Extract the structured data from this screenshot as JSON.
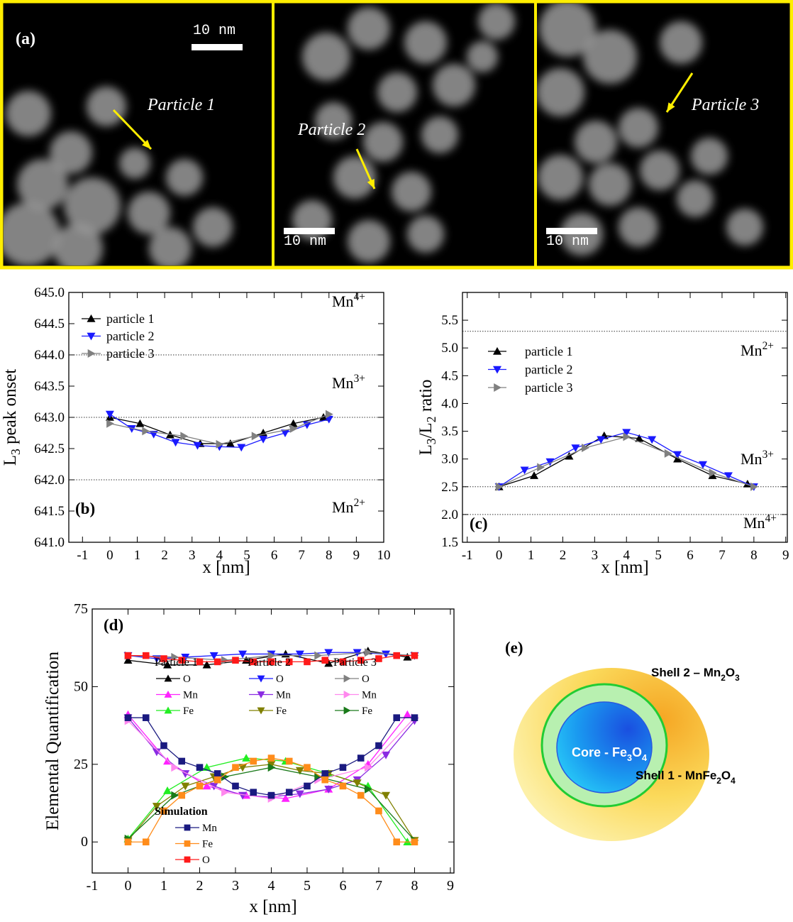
{
  "panel_a": {
    "label": "(a)",
    "scale_bars": [
      "10 nm",
      "10 nm",
      "10 nm"
    ],
    "particles": [
      "Particle 1",
      "Particle 2",
      "Particle 3"
    ]
  },
  "chart_data": [
    {
      "type": "line",
      "panel_label": "(b)",
      "xlabel": "x [nm]",
      "ylabel": [
        "L",
        "3",
        " peak onset"
      ],
      "xlim": [
        -1.5,
        10
      ],
      "ylim": [
        641,
        645
      ],
      "xticks": [
        -1,
        0,
        1,
        2,
        3,
        4,
        5,
        6,
        7,
        8,
        9,
        10
      ],
      "yticks": [
        {
          "value": 641,
          "label": "641.0"
        },
        641.5,
        {
          "value": 642,
          "label": "642.0"
        },
        642.5,
        {
          "value": 643,
          "label": "643.0"
        },
        643.5,
        {
          "value": 644,
          "label": "644.0"
        },
        644.5,
        {
          "value": 645,
          "label": "645.0"
        }
      ],
      "reference_lines": [
        642,
        643,
        644
      ],
      "annotations": [
        [
          "Mn",
          "4+"
        ],
        [
          "Mn",
          "3+"
        ],
        [
          "Mn",
          "2+"
        ]
      ],
      "series": [
        {
          "name": "particle 1",
          "color": "#000000",
          "marker": "triangle-up",
          "x": [
            0,
            1.1,
            2.2,
            3.3,
            4.4,
            5.6,
            6.7,
            7.8
          ],
          "values": [
            643.0,
            642.9,
            642.72,
            642.58,
            642.58,
            642.75,
            642.9,
            643.0
          ]
        },
        {
          "name": "particle 2",
          "color": "#1a1aff",
          "marker": "triangle-down",
          "x": [
            0,
            0.8,
            1.6,
            2.4,
            3.2,
            4,
            4.8,
            5.6,
            6.4,
            7.2,
            8
          ],
          "values": [
            643.05,
            642.82,
            642.73,
            642.6,
            642.55,
            642.53,
            642.52,
            642.65,
            642.75,
            642.88,
            642.97
          ]
        },
        {
          "name": "particle 3",
          "color": "#808080",
          "marker": "triangle-right",
          "x": [
            0,
            1.3,
            2.7,
            4,
            5.3,
            6.7,
            8
          ],
          "values": [
            642.9,
            642.78,
            642.7,
            642.57,
            642.7,
            642.82,
            643.05
          ]
        }
      ]
    },
    {
      "type": "line",
      "panel_label": "(c)",
      "xlabel": "x [nm]",
      "ylabel": [
        "L",
        "3",
        "/L",
        "2",
        " ratio"
      ],
      "xlim": [
        -1.15,
        9.05
      ],
      "ylim": [
        1.5,
        6.0
      ],
      "xticks": [
        -1,
        0,
        1,
        2,
        3,
        4,
        5,
        6,
        7,
        8,
        9
      ],
      "yticks": [
        1.5,
        {
          "value": 2,
          "label": "2.0"
        },
        2.5,
        {
          "value": 3,
          "label": "3.0"
        },
        3.5,
        {
          "value": 4,
          "label": "4.0"
        },
        4.5,
        {
          "value": 5,
          "label": "5.0"
        },
        5.5
      ],
      "reference_lines": [
        2.0,
        2.5,
        5.3
      ],
      "annotations": [
        [
          "Mn",
          "2+"
        ],
        [
          "Mn",
          "3+"
        ],
        [
          "Mn",
          "4+"
        ]
      ],
      "series": [
        {
          "name": "particle 1",
          "color": "#000000",
          "marker": "triangle-up",
          "x": [
            0,
            1.1,
            2.2,
            3.3,
            4.4,
            5.6,
            6.7,
            7.8
          ],
          "values": [
            2.5,
            2.7,
            3.05,
            3.42,
            3.37,
            3.0,
            2.7,
            2.55
          ]
        },
        {
          "name": "particle 2",
          "color": "#1a1aff",
          "marker": "triangle-down",
          "x": [
            0,
            0.8,
            1.6,
            2.4,
            3.2,
            4,
            4.8,
            5.6,
            6.4,
            7.2,
            8
          ],
          "values": [
            2.5,
            2.8,
            2.95,
            3.2,
            3.35,
            3.48,
            3.35,
            3.08,
            2.9,
            2.7,
            2.5
          ]
        },
        {
          "name": "particle 3",
          "color": "#808080",
          "marker": "triangle-right",
          "x": [
            0,
            1.3,
            2.7,
            4,
            5.3,
            6.7,
            8
          ],
          "values": [
            2.5,
            2.85,
            3.2,
            3.4,
            3.1,
            2.75,
            2.5
          ]
        }
      ]
    },
    {
      "type": "line",
      "panel_label": "(d)",
      "xlabel": "x [nm]",
      "ylabel": "Elemental Quantification",
      "xlim": [
        -1,
        9.1
      ],
      "ylim": [
        -10,
        75
      ],
      "xticks": [
        -1,
        0,
        1,
        2,
        3,
        4,
        5,
        6,
        7,
        8,
        9
      ],
      "yticks": [
        0,
        25,
        50,
        75
      ],
      "groups": [
        {
          "title": "Particle 1",
          "series": [
            {
              "name": "O",
              "color": "#000000",
              "marker": "triangle-up",
              "x": [
                0,
                1.1,
                2.2,
                3.3,
                4.4,
                5.6,
                6.7,
                7.8
              ],
              "values": [
                58.5,
                57,
                57,
                58.5,
                60.5,
                57.5,
                61.5,
                59.5
              ]
            },
            {
              "name": "Mn",
              "color": "#ff22ff",
              "marker": "triangle-up",
              "x": [
                0,
                1.1,
                2.2,
                3.3,
                4.4,
                5.6,
                6.7,
                7.8
              ],
              "values": [
                41,
                26,
                18,
                15,
                14,
                17,
                25,
                41
              ]
            },
            {
              "name": "Fe",
              "color": "#22ee22",
              "marker": "triangle-up",
              "x": [
                0,
                1.1,
                2.2,
                3.3,
                4.4,
                5.6,
                6.7,
                7.8
              ],
              "values": [
                1,
                16.5,
                24,
                27,
                26,
                22,
                18,
                0
              ]
            }
          ]
        },
        {
          "title": "Particle 2",
          "series": [
            {
              "name": "O",
              "color": "#1a1aff",
              "marker": "triangle-down",
              "x": [
                0,
                0.8,
                1.6,
                2.4,
                3.2,
                4,
                4.8,
                5.6,
                6.4,
                7.2,
                8
              ],
              "values": [
                60,
                59,
                59.5,
                60,
                60.5,
                60.5,
                60.5,
                61,
                61,
                60.5,
                60
              ]
            },
            {
              "name": "Mn",
              "color": "#8a2be2",
              "marker": "triangle-down",
              "x": [
                0,
                0.8,
                1.6,
                2.4,
                3.2,
                4,
                4.8,
                5.6,
                6.4,
                7.2,
                8
              ],
              "values": [
                40,
                29,
                22,
                18,
                15,
                14.5,
                15.5,
                17,
                20,
                28,
                39
              ]
            },
            {
              "name": "Fe",
              "color": "#808000",
              "marker": "triangle-down",
              "x": [
                0,
                0.8,
                1.6,
                2.4,
                3.2,
                4,
                4.8,
                5.6,
                6.4,
                7.2,
                8
              ],
              "values": [
                0.5,
                11.5,
                18,
                21,
                24,
                25,
                23,
                22,
                19,
                15,
                0.5
              ]
            }
          ]
        },
        {
          "title": "Particle 3",
          "series": [
            {
              "name": "O",
              "color": "#808080",
              "marker": "triangle-right",
              "x": [
                0,
                1.3,
                2.7,
                4,
                5.3,
                6.7,
                8
              ],
              "values": [
                60,
                59.5,
                58.5,
                60,
                60,
                61,
                60
              ]
            },
            {
              "name": "Mn",
              "color": "#ff88ee",
              "marker": "triangle-right",
              "x": [
                0,
                1.3,
                2.7,
                4,
                5.3,
                6.7,
                8
              ],
              "values": [
                39,
                24,
                16,
                14,
                20,
                24,
                40
              ]
            },
            {
              "name": "Fe",
              "color": "#1a7a1a",
              "marker": "triangle-right",
              "x": [
                0,
                1.3,
                2.7,
                4,
                5.3,
                6.7,
                8
              ],
              "values": [
                1,
                15,
                21,
                24,
                21,
                17,
                0.5
              ]
            }
          ]
        },
        {
          "title": "Simulation",
          "series": [
            {
              "name": "Mn",
              "color": "#1a1a80",
              "marker": "square",
              "x": [
                0,
                0.5,
                1,
                1.5,
                2,
                2.5,
                3,
                3.5,
                4,
                4.5,
                5,
                5.5,
                6,
                6.5,
                7,
                7.5,
                8
              ],
              "values": [
                40,
                40,
                31,
                26,
                24,
                22,
                18,
                16,
                15,
                16,
                18,
                22,
                24,
                27,
                31,
                40,
                40
              ]
            },
            {
              "name": "Fe",
              "color": "#ff8c1a",
              "marker": "square",
              "x": [
                0,
                0.5,
                1,
                1.5,
                2,
                2.5,
                3,
                3.5,
                4,
                4.5,
                5,
                5.5,
                6,
                6.5,
                7,
                7.5,
                8
              ],
              "values": [
                0,
                0,
                10,
                15,
                18,
                20,
                24,
                26,
                27,
                26,
                24,
                20,
                18,
                15,
                10,
                0,
                0
              ]
            },
            {
              "name": "O",
              "color": "#ff1a1a",
              "marker": "square",
              "x": [
                0,
                0.5,
                1,
                1.5,
                2,
                2.5,
                3,
                3.5,
                4,
                4.5,
                5,
                5.5,
                6,
                6.5,
                7,
                7.5,
                8
              ],
              "values": [
                60,
                60,
                59,
                58.5,
                58,
                58,
                58.5,
                58,
                58,
                58,
                58,
                58.5,
                58,
                58.5,
                59,
                60,
                60
              ]
            }
          ]
        }
      ]
    }
  ],
  "panel_e": {
    "label": "(e)",
    "shell_2": [
      "Shell 2 – Mn",
      "2",
      "O",
      "3"
    ],
    "core": [
      "Core - Fe",
      "3",
      "O",
      "4"
    ],
    "shell_1": [
      "Shell 1 - MnFe",
      "2",
      "O",
      "4"
    ]
  }
}
